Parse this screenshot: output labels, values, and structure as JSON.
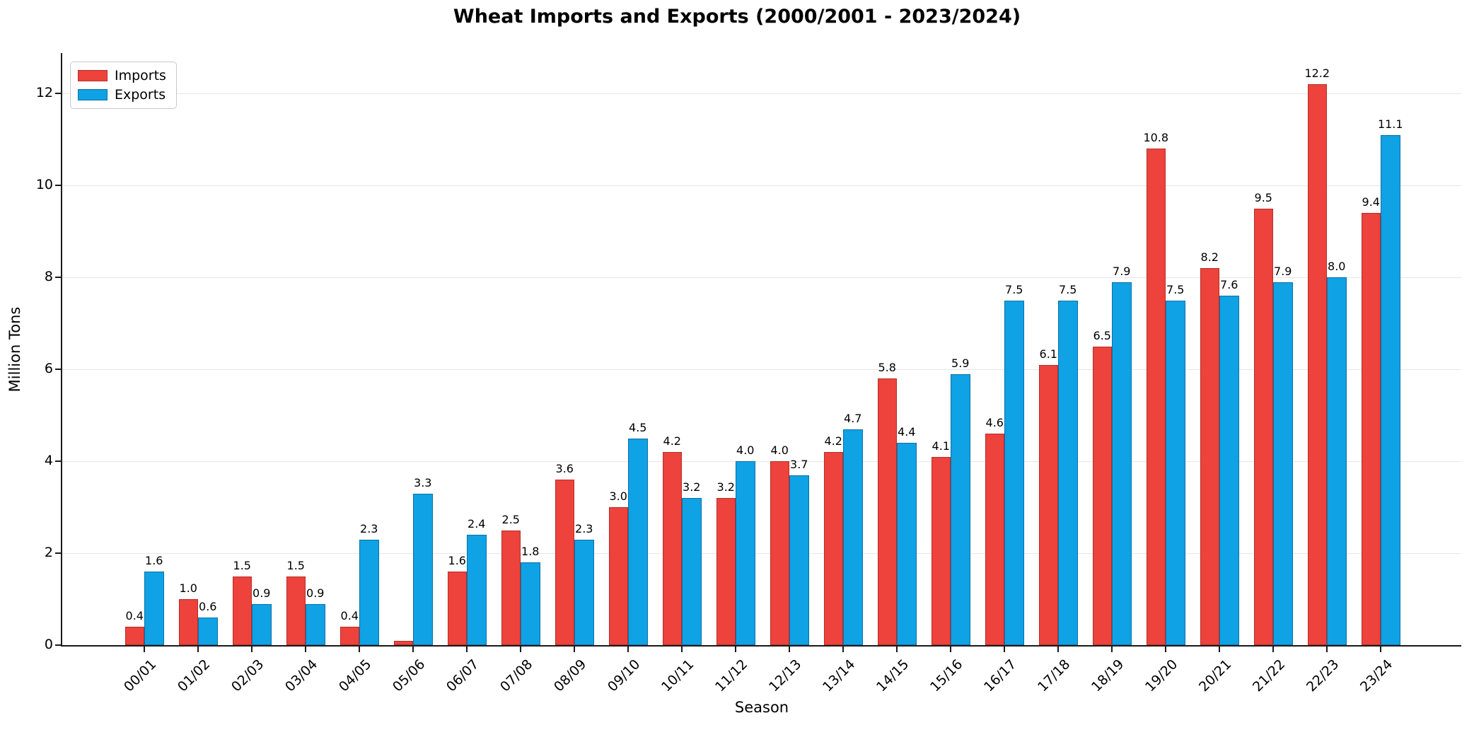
{
  "title": "Wheat Imports and Exports (2000/2001 - 2023/2024)",
  "axes": {
    "xlabel": "Season",
    "ylabel": "Million Tons"
  },
  "legend": {
    "items": [
      {
        "label": "Imports",
        "color": "#ee423d",
        "edge": "#b52e27"
      },
      {
        "label": "Exports",
        "color": "#0fa2e4",
        "edge": "#0c6fa8"
      }
    ]
  },
  "colors": {
    "imports_fill": "#ee423d",
    "imports_edge": "#b52e27",
    "exports_fill": "#0fa2e4",
    "exports_edge": "#0c6fa8",
    "gridline": "#e7e7e7",
    "axis": "#1a1a1a"
  },
  "chart_data": {
    "type": "bar",
    "title": "Wheat Imports and Exports (2000/2001 - 2023/2024)",
    "xlabel": "Season",
    "ylabel": "Million Tons",
    "ylim": [
      0,
      12.9
    ],
    "yticks": [
      0,
      2,
      4,
      6,
      8,
      10,
      12
    ],
    "grid": "horizontal",
    "legend_position": "upper-left",
    "categories": [
      "00/01",
      "01/02",
      "02/03",
      "03/04",
      "04/05",
      "05/06",
      "06/07",
      "07/08",
      "08/09",
      "09/10",
      "10/11",
      "11/12",
      "12/13",
      "13/14",
      "14/15",
      "15/16",
      "16/17",
      "17/18",
      "18/19",
      "19/20",
      "20/21",
      "21/22",
      "22/23",
      "23/24"
    ],
    "series": [
      {
        "name": "Imports",
        "values": [
          0.4,
          1.0,
          1.5,
          1.5,
          0.4,
          0.1,
          1.6,
          2.5,
          3.6,
          3.0,
          4.2,
          3.2,
          4.0,
          4.2,
          5.8,
          4.1,
          4.6,
          6.1,
          6.5,
          10.8,
          8.2,
          9.5,
          12.2,
          9.4
        ],
        "labels": [
          "0.4",
          "1.0",
          "1.5",
          "1.5",
          "0.4",
          "",
          "1.6",
          "2.5",
          "3.6",
          "3.0",
          "4.2",
          "3.2",
          "4.0",
          "4.2",
          "5.8",
          "4.1",
          "4.6",
          "6.1",
          "6.5",
          "10.8",
          "8.2",
          "9.5",
          "12.2",
          "9.4"
        ]
      },
      {
        "name": "Exports",
        "values": [
          1.6,
          0.6,
          0.9,
          0.9,
          2.3,
          3.3,
          2.4,
          1.8,
          2.3,
          4.5,
          3.2,
          4.0,
          3.7,
          4.7,
          4.4,
          5.9,
          7.5,
          7.5,
          7.9,
          7.5,
          7.6,
          7.9,
          8.0,
          11.1
        ],
        "labels": [
          "1.6",
          "0.6",
          "0.9",
          "0.9",
          "2.3",
          "3.3",
          "2.4",
          "1.8",
          "2.3",
          "4.5",
          "3.2",
          "4.0",
          "3.7",
          "4.7",
          "4.4",
          "5.9",
          "7.5",
          "7.5",
          "7.9",
          "7.5",
          "7.6",
          "7.9",
          "8.0",
          "11.1"
        ]
      }
    ]
  }
}
